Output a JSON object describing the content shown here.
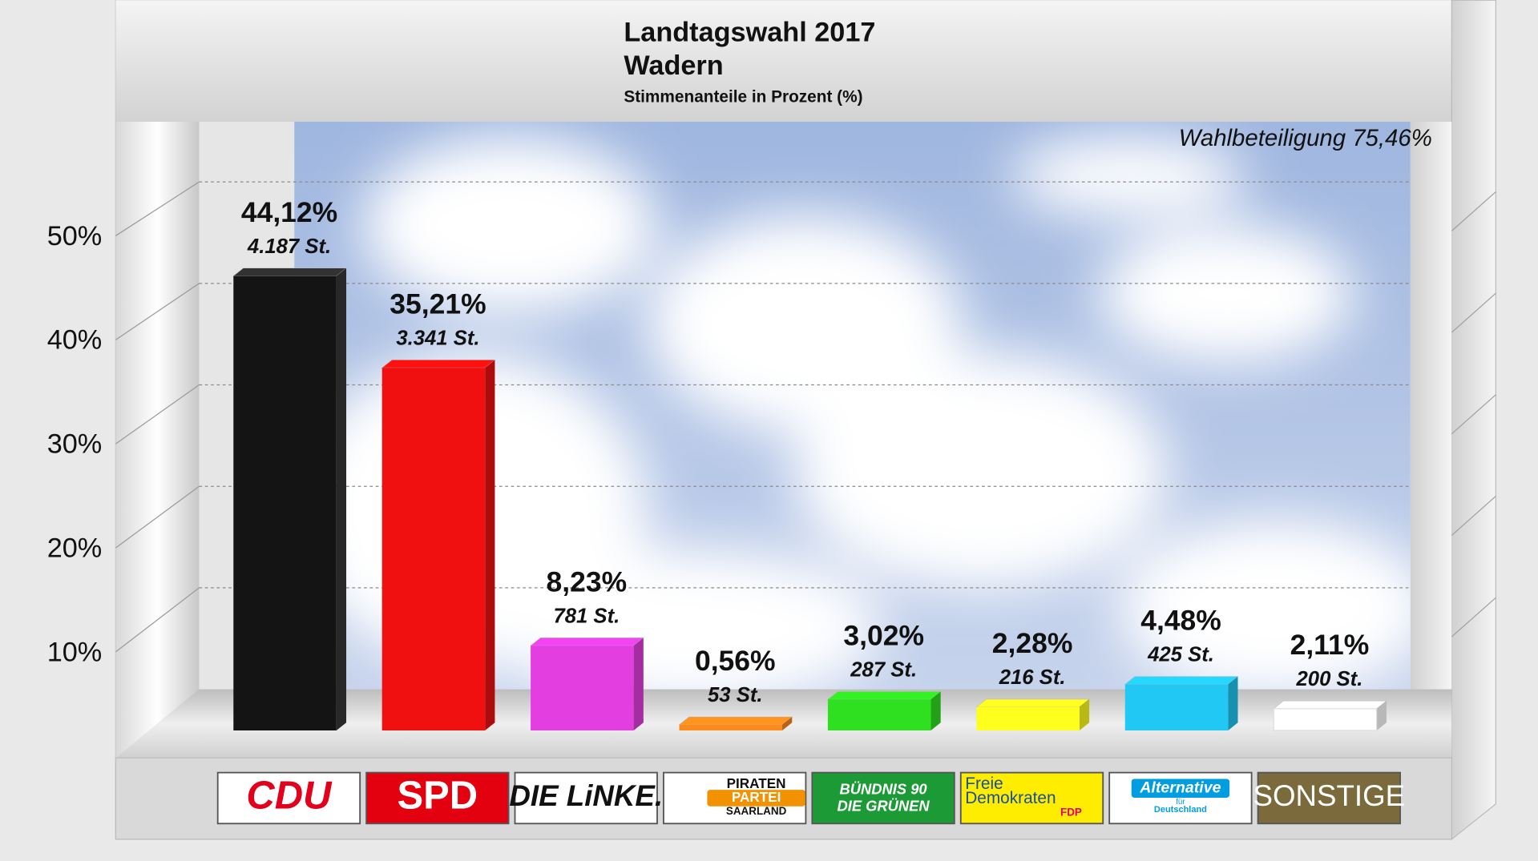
{
  "chart_data": {
    "type": "bar",
    "title": "Landtagswahl 2017",
    "subtitle": "Wadern",
    "caption": "Stimmenanteile in Prozent (%)",
    "annotation": "Wahlbeteiligung 75,46%",
    "categories": [
      [
        "CDU"
      ],
      [
        "SPD"
      ],
      [
        "DIE LiNKE."
      ],
      [
        "PIRATEN",
        "PARTEI",
        "SAARLAND"
      ],
      [
        "BÜNDNIS 90",
        "DIE GRÜNEN"
      ],
      [
        "Freie",
        "Demokraten",
        "FDP"
      ],
      [
        "Alternative",
        "für",
        "Deutschland"
      ],
      [
        "SONSTIGE"
      ]
    ],
    "values": [
      44.12,
      35.21,
      8.23,
      0.56,
      3.02,
      2.28,
      4.48,
      2.11
    ],
    "value_labels": [
      "44,12%",
      "35,21%",
      "8,23%",
      "0,56%",
      "3,02%",
      "2,28%",
      "4,48%",
      "2,11%"
    ],
    "vote_labels": [
      "4.187 St.",
      "3.341 St.",
      "781 St.",
      "53 St.",
      "287 St.",
      "216 St.",
      "425 St.",
      "200 St."
    ],
    "colors": [
      "#141414",
      "#f01010",
      "#e23ee0",
      "#ff8a1c",
      "#2fe020",
      "#ffff1e",
      "#22c8f4",
      "#ffffff"
    ],
    "ylim": [
      0,
      55
    ],
    "yticks": [
      {
        "value": 10,
        "label": "10%"
      },
      {
        "value": 20,
        "label": "20%"
      },
      {
        "value": 30,
        "label": "30%"
      },
      {
        "value": 40,
        "label": "40%"
      },
      {
        "value": 50,
        "label": "50%"
      }
    ],
    "grid": true
  }
}
